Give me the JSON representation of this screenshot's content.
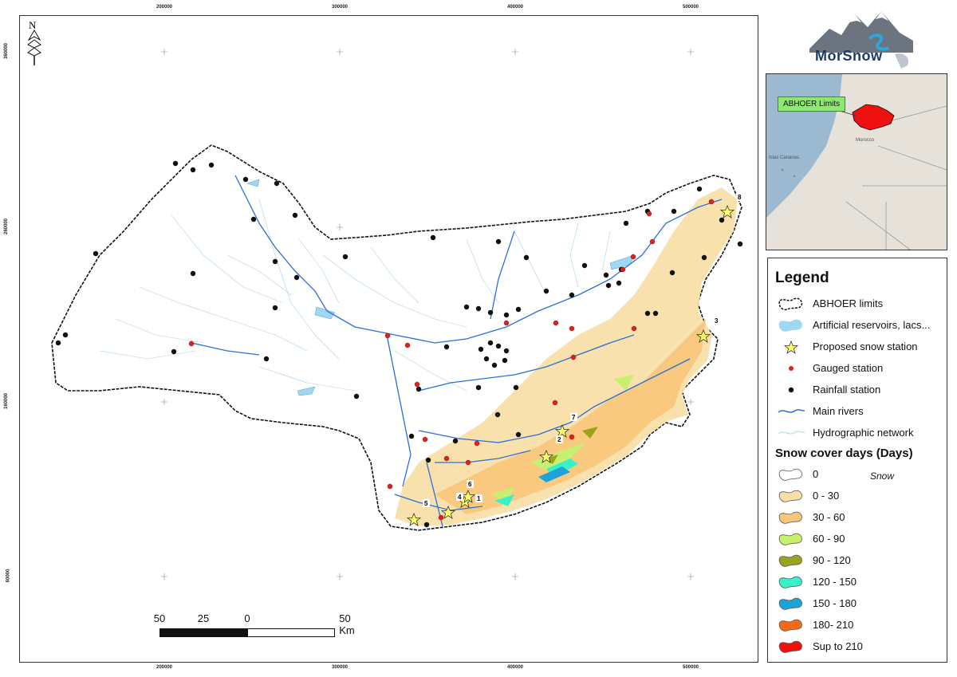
{
  "logo": {
    "text": "MorSnow"
  },
  "inset": {
    "callout_label": "ABHOER Limits",
    "place_labels": [
      "Morocco",
      "Islas Canarias"
    ]
  },
  "axes": {
    "x_ticks": [
      "200000",
      "300000",
      "400000",
      "500000"
    ],
    "y_ticks": [
      "360000",
      "260000",
      "160000",
      "60000"
    ]
  },
  "scale_bar": {
    "labels": [
      "50",
      "25",
      "0",
      "50 Km"
    ]
  },
  "north_arrow": {
    "label": "N"
  },
  "stations": {
    "proposed_snow": [
      "1",
      "2",
      "3",
      "4",
      "5",
      "6",
      "7",
      "8"
    ]
  },
  "legend": {
    "title": "Legend",
    "items": [
      {
        "label": "ABHOER limits",
        "icon": "dashed-boundary-icon"
      },
      {
        "label": "Artificial reservoirs, lacs...",
        "icon": "reservoir-icon",
        "color": "#9fd8f2"
      },
      {
        "label": "Proposed snow station",
        "icon": "star-icon",
        "color": "#ffff66"
      },
      {
        "label": "Gauged station",
        "icon": "red-dot-icon",
        "color": "#e02020"
      },
      {
        "label": "Rainfall station",
        "icon": "black-dot-icon",
        "color": "#111111"
      },
      {
        "label": "Main rivers",
        "icon": "river-line-icon",
        "color": "#2a6fd6"
      },
      {
        "label": "Hydrographic network",
        "icon": "thin-line-icon",
        "color": "#bfe3f2"
      }
    ],
    "snow_title": "Snow cover days (Days)",
    "snow_sublabel": "Snow",
    "snow_classes": [
      {
        "label": "0",
        "color": "#ffffff"
      },
      {
        "label": "0 - 30",
        "color": "#f8dfa8"
      },
      {
        "label": "30 - 60",
        "color": "#f7c77a"
      },
      {
        "label": "60 - 90",
        "color": "#c8f070"
      },
      {
        "label": "90 - 120",
        "color": "#9aa31a"
      },
      {
        "label": "120 - 150",
        "color": "#39f0c8"
      },
      {
        "label": "150 - 180",
        "color": "#1ea3d9"
      },
      {
        "label": "180- 210",
        "color": "#f56a1a"
      },
      {
        "label": "Sup to 210",
        "color": "#f01010"
      }
    ]
  }
}
